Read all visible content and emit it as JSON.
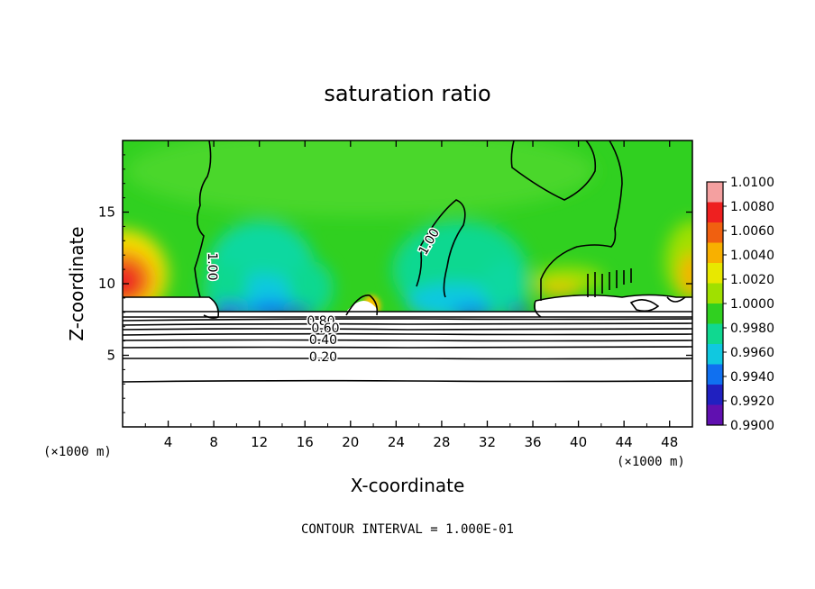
{
  "chart_data": {
    "type": "heatmap",
    "title": "saturation ratio",
    "xlabel": "X-coordinate",
    "ylabel": "Z-coordinate",
    "x_unit_left": "(×1000 m)",
    "x_unit_right": "(×1000 m)",
    "xlim": [
      0,
      50
    ],
    "ylim": [
      0,
      20
    ],
    "x_ticks": [
      4,
      8,
      12,
      16,
      20,
      24,
      28,
      32,
      36,
      40,
      44,
      48
    ],
    "y_ticks": [
      5,
      10,
      15
    ],
    "colorbar": {
      "labels": [
        "1.0100",
        "1.0080",
        "1.0060",
        "1.0040",
        "1.0020",
        "1.0000",
        "0.9980",
        "0.9960",
        "0.9940",
        "0.9920",
        "0.9900"
      ],
      "colors": [
        "#f4a0a0",
        "#ee2020",
        "#f06010",
        "#f8b000",
        "#e8e800",
        "#a0e000",
        "#30d020",
        "#10d890",
        "#10c8e0",
        "#1070f0",
        "#2020c0",
        "#6010b0"
      ]
    },
    "contour_labels": [
      {
        "text": "1.00",
        "x": 7.5,
        "z": 11.2,
        "rotate": 90
      },
      {
        "text": "1.00",
        "x": 27.2,
        "z": 12.8,
        "rotate": -60
      },
      {
        "text": "0.80",
        "x": 17.4,
        "z": 7.1,
        "rotate": 0
      },
      {
        "text": "0.60",
        "x": 17.8,
        "z": 6.6,
        "rotate": 0
      },
      {
        "text": "0.40",
        "x": 17.6,
        "z": 5.8,
        "rotate": 0
      },
      {
        "text": "0.20",
        "x": 17.6,
        "z": 4.6,
        "rotate": 0
      }
    ],
    "footer": "CONTOUR INTERVAL = 1.000E-01"
  }
}
